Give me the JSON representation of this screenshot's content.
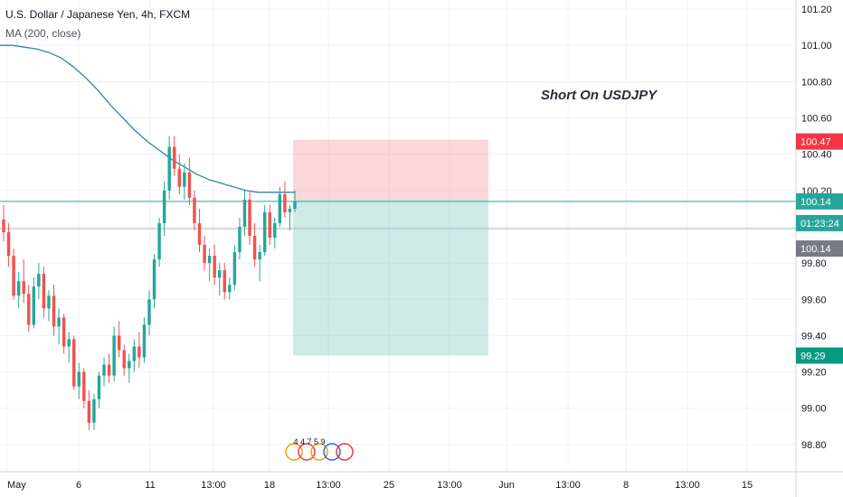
{
  "header": {
    "title": "U.S. Dollar / Japanese Yen, 4h, FXCM",
    "indicator": "MA (200, close)"
  },
  "chart_data": {
    "type": "candlestick",
    "annotation": "Short On USDJPY",
    "ylim": [
      98.65,
      101.25
    ],
    "y_ticks": [
      "98.80",
      "99.00",
      "99.20",
      "99.40",
      "99.60",
      "99.80",
      "100.00",
      "100.20",
      "100.40",
      "100.60",
      "100.80",
      "101.00",
      "101.20"
    ],
    "x_ticks": [
      "May",
      "6",
      "11",
      "13:00",
      "18",
      "13:00",
      "25",
      "13:00",
      "Jun",
      "13:00",
      "8",
      "13:00",
      "15"
    ],
    "price_badges": [
      {
        "label": "100.47",
        "value": 100.47,
        "color": "#f23645"
      },
      {
        "label": "100.14",
        "value": 100.14,
        "color": "#26a69a"
      },
      {
        "label": "01:23:24",
        "value": 100.02,
        "color": "#26a69a"
      },
      {
        "label": "100.14",
        "value": 99.88,
        "color": "#787b86"
      },
      {
        "label": "99.29",
        "value": 99.29,
        "color": "#089981"
      }
    ],
    "position": {
      "type": "short",
      "entry": 100.15,
      "stop": 100.48,
      "target": 99.29
    },
    "events_label": "4 4 7 5 9",
    "colors": {
      "up": "#26a69a",
      "down": "#ef5350",
      "ma": "#2e86ab",
      "grid": "#f0f3fa"
    },
    "ma_200": [
      101.0,
      101.0,
      100.99,
      100.98,
      100.96,
      100.93,
      100.88,
      100.82,
      100.75,
      100.67,
      100.6,
      100.53,
      100.47,
      100.42,
      100.37,
      100.33,
      100.29,
      100.26,
      100.24,
      100.22,
      100.2,
      100.19,
      100.19,
      100.19,
      100.19
    ],
    "candles": [
      [
        100.04,
        100.12,
        99.92,
        99.97
      ],
      [
        99.97,
        100.02,
        99.78,
        99.84
      ],
      [
        99.84,
        99.88,
        99.6,
        99.62
      ],
      [
        99.62,
        99.75,
        99.55,
        99.7
      ],
      [
        99.7,
        99.82,
        99.58,
        99.63
      ],
      [
        99.63,
        99.68,
        99.42,
        99.46
      ],
      [
        99.46,
        99.72,
        99.44,
        99.67
      ],
      [
        99.67,
        99.8,
        99.6,
        99.74
      ],
      [
        99.74,
        99.78,
        99.5,
        99.55
      ],
      [
        99.55,
        99.65,
        99.48,
        99.62
      ],
      [
        99.62,
        99.68,
        99.4,
        99.45
      ],
      [
        99.45,
        99.55,
        99.35,
        99.5
      ],
      [
        99.5,
        99.52,
        99.3,
        99.34
      ],
      [
        99.34,
        99.42,
        99.25,
        99.38
      ],
      [
        99.38,
        99.4,
        99.1,
        99.12
      ],
      [
        99.12,
        99.25,
        99.05,
        99.2
      ],
      [
        99.2,
        99.22,
        99.0,
        99.04
      ],
      [
        99.04,
        99.1,
        98.88,
        98.92
      ],
      [
        98.92,
        99.08,
        98.88,
        99.05
      ],
      [
        99.05,
        99.2,
        99.0,
        99.18
      ],
      [
        99.18,
        99.28,
        99.12,
        99.24
      ],
      [
        99.24,
        99.3,
        99.14,
        99.18
      ],
      [
        99.18,
        99.45,
        99.15,
        99.4
      ],
      [
        99.4,
        99.48,
        99.28,
        99.32
      ],
      [
        99.32,
        99.35,
        99.18,
        99.22
      ],
      [
        99.22,
        99.3,
        99.14,
        99.26
      ],
      [
        99.26,
        99.38,
        99.2,
        99.34
      ],
      [
        99.34,
        99.42,
        99.22,
        99.28
      ],
      [
        99.28,
        99.5,
        99.25,
        99.46
      ],
      [
        99.46,
        99.65,
        99.4,
        99.6
      ],
      [
        99.6,
        99.85,
        99.55,
        99.82
      ],
      [
        99.82,
        100.05,
        99.78,
        100.02
      ],
      [
        100.02,
        100.25,
        99.95,
        100.2
      ],
      [
        100.2,
        100.5,
        100.15,
        100.44
      ],
      [
        100.44,
        100.5,
        100.28,
        100.32
      ],
      [
        100.32,
        100.4,
        100.18,
        100.22
      ],
      [
        100.22,
        100.35,
        100.15,
        100.3
      ],
      [
        100.3,
        100.38,
        100.12,
        100.16
      ],
      [
        100.16,
        100.2,
        99.98,
        100.02
      ],
      [
        100.02,
        100.1,
        99.86,
        99.9
      ],
      [
        99.9,
        99.95,
        99.76,
        99.8
      ],
      [
        99.8,
        99.88,
        99.7,
        99.84
      ],
      [
        99.84,
        99.9,
        99.68,
        99.72
      ],
      [
        99.72,
        99.8,
        99.62,
        99.76
      ],
      [
        99.76,
        99.8,
        99.6,
        99.64
      ],
      [
        99.64,
        99.72,
        99.6,
        99.68
      ],
      [
        99.68,
        99.9,
        99.65,
        99.86
      ],
      [
        99.86,
        100.05,
        99.82,
        100.0
      ],
      [
        100.0,
        100.2,
        99.95,
        100.15
      ],
      [
        100.15,
        100.2,
        99.9,
        99.95
      ],
      [
        99.95,
        100.02,
        99.78,
        99.82
      ],
      [
        99.82,
        99.9,
        99.7,
        99.86
      ],
      [
        99.86,
        100.12,
        99.84,
        100.08
      ],
      [
        100.08,
        100.12,
        99.9,
        99.94
      ],
      [
        99.94,
        100.05,
        99.88,
        100.02
      ],
      [
        100.02,
        100.22,
        100.0,
        100.18
      ],
      [
        100.18,
        100.25,
        100.05,
        100.08
      ],
      [
        100.08,
        100.12,
        99.98,
        100.1
      ],
      [
        100.1,
        100.2,
        100.08,
        100.14
      ]
    ]
  }
}
